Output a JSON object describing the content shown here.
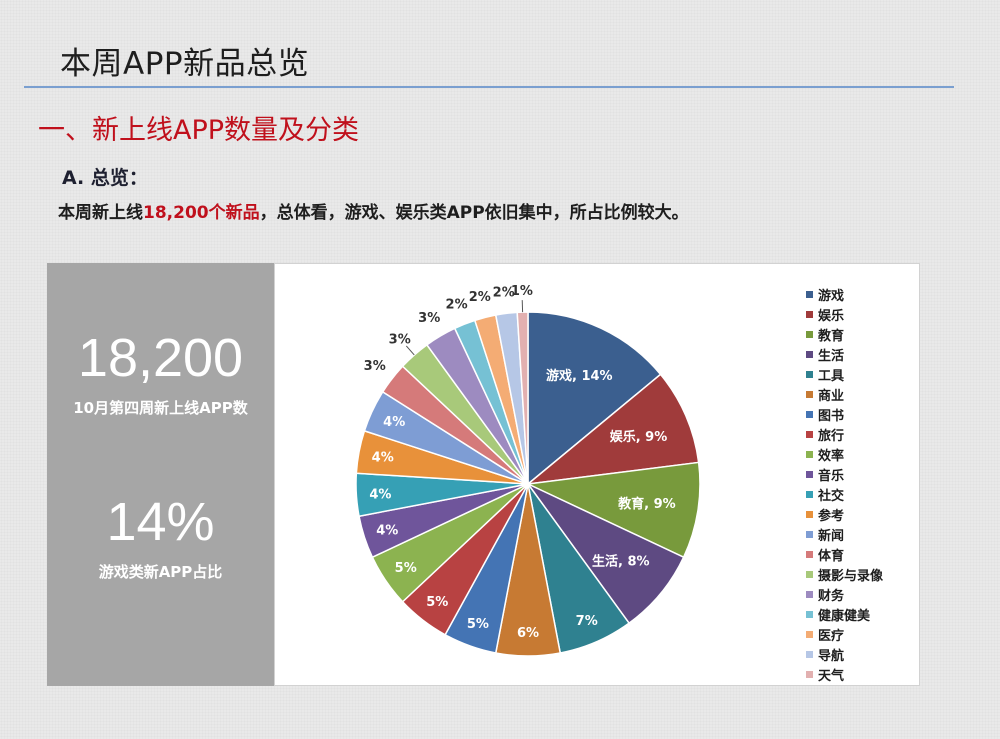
{
  "page": {
    "title": "本周APP新品总览",
    "section_title": "一、新上线APP数量及分类",
    "sub_heading": "A. 总览：",
    "summary": {
      "prefix": "本周新上线",
      "highlight": "18,200个新品",
      "suffix": "，总体看，游戏、娱乐类APP依旧集中，所占比例较大。"
    }
  },
  "stats": [
    {
      "value": "18,200",
      "caption": "10月第四周新上线APP数"
    },
    {
      "value": "14%",
      "caption": "游戏类新APP占比"
    }
  ],
  "colors": {
    "accent_red": "#c0101c",
    "rule_blue": "#7a9fd0",
    "panel_gray": "#a6a6a6"
  },
  "chart_data": {
    "type": "pie",
    "title": "",
    "legend_position": "right",
    "start_angle_deg": 0,
    "direction": "clockwise",
    "slices": [
      {
        "name": "游戏",
        "value": 14,
        "label": "游戏, 14%",
        "color": "#3b5f8f"
      },
      {
        "name": "娱乐",
        "value": 9,
        "label": "娱乐, 9%",
        "color": "#a03b3b"
      },
      {
        "name": "教育",
        "value": 9,
        "label": "教育, 9%",
        "color": "#789a3c"
      },
      {
        "name": "生活",
        "value": 8,
        "label": "生活, 8%",
        "color": "#5e4a82"
      },
      {
        "name": "工具",
        "value": 7,
        "label": "7%",
        "color": "#2f8190"
      },
      {
        "name": "商业",
        "value": 6,
        "label": "6%",
        "color": "#c77a33"
      },
      {
        "name": "图书",
        "value": 5,
        "label": "5%",
        "color": "#4474b4"
      },
      {
        "name": "旅行",
        "value": 5,
        "label": "5%",
        "color": "#b84242"
      },
      {
        "name": "效率",
        "value": 5,
        "label": "5%",
        "color": "#8cb350"
      },
      {
        "name": "音乐",
        "value": 4,
        "label": "4%",
        "color": "#6f559b"
      },
      {
        "name": "社交",
        "value": 4,
        "label": "4%",
        "color": "#36a0b5"
      },
      {
        "name": "参考",
        "value": 4,
        "label": "4%",
        "color": "#e8913a"
      },
      {
        "name": "新闻",
        "value": 4,
        "label": "4%",
        "color": "#7e9dd4"
      },
      {
        "name": "体育",
        "value": 3,
        "label": "3%",
        "color": "#d57a7a"
      },
      {
        "name": "摄影与录像",
        "value": 3,
        "label": "3%",
        "color": "#a8c97a"
      },
      {
        "name": "财务",
        "value": 3,
        "label": "3%",
        "color": "#9d8bc0"
      },
      {
        "name": "健康健美",
        "value": 2,
        "label": "2%",
        "color": "#76c1d4"
      },
      {
        "name": "医疗",
        "value": 2,
        "label": "2%",
        "color": "#f4ac74"
      },
      {
        "name": "导航",
        "value": 2,
        "label": "2%",
        "color": "#b6c7e6"
      },
      {
        "name": "天气",
        "value": 1,
        "label": "1%",
        "color": "#e2b0b0"
      }
    ]
  }
}
